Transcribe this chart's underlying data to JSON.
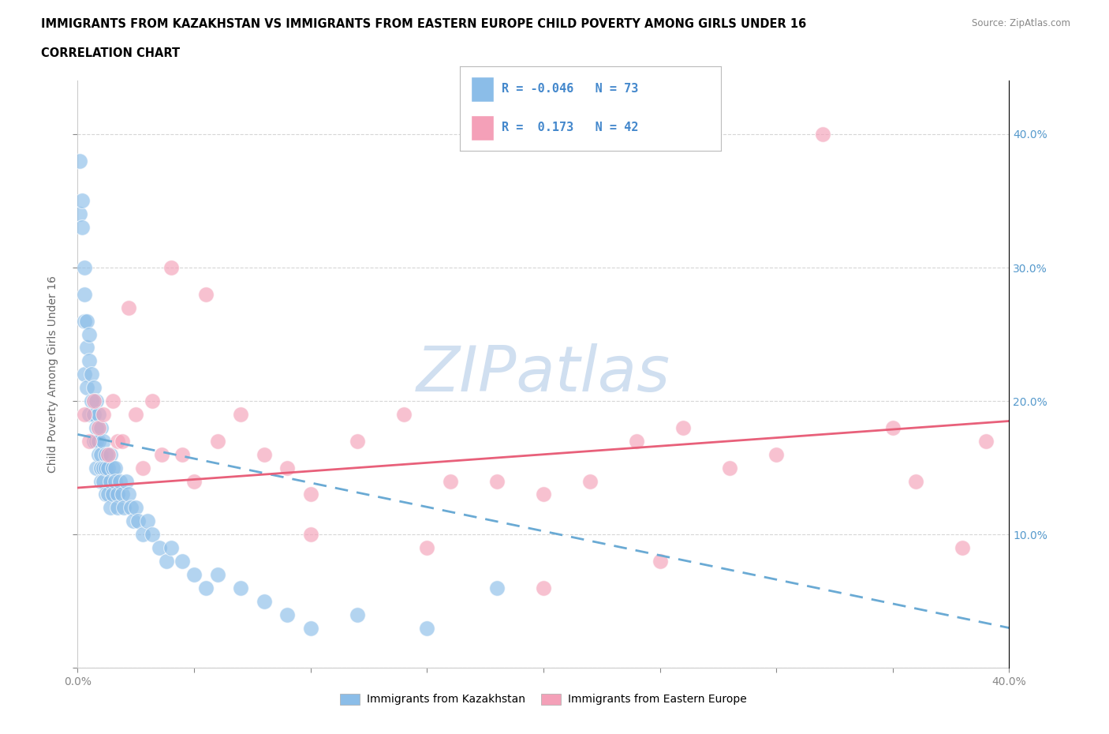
{
  "title_line1": "IMMIGRANTS FROM KAZAKHSTAN VS IMMIGRANTS FROM EASTERN EUROPE CHILD POVERTY AMONG GIRLS UNDER 16",
  "title_line2": "CORRELATION CHART",
  "source_text": "Source: ZipAtlas.com",
  "ylabel": "Child Poverty Among Girls Under 16",
  "xlim": [
    0.0,
    0.4
  ],
  "ylim": [
    0.0,
    0.44
  ],
  "xticks": [
    0.0,
    0.05,
    0.1,
    0.15,
    0.2,
    0.25,
    0.3,
    0.35,
    0.4
  ],
  "yticks": [
    0.0,
    0.1,
    0.2,
    0.3,
    0.4
  ],
  "kazakhstan_R": -0.046,
  "kazakhstan_N": 73,
  "eastern_europe_R": 0.173,
  "eastern_europe_N": 42,
  "kazakhstan_color": "#8BBDE8",
  "eastern_europe_color": "#F4A0B8",
  "trend_kazakhstan_color": "#6AAAD4",
  "trend_eastern_color": "#E8607A",
  "watermark": "ZIPatlas",
  "watermark_color": "#D0DFF0",
  "legend_label_kaz": "Immigrants from Kazakhstan",
  "legend_label_ee": "Immigrants from Eastern Europe",
  "kaz_x": [
    0.001,
    0.001,
    0.002,
    0.002,
    0.003,
    0.003,
    0.003,
    0.003,
    0.004,
    0.004,
    0.004,
    0.005,
    0.005,
    0.005,
    0.006,
    0.006,
    0.007,
    0.007,
    0.007,
    0.008,
    0.008,
    0.008,
    0.008,
    0.009,
    0.009,
    0.009,
    0.01,
    0.01,
    0.01,
    0.01,
    0.011,
    0.011,
    0.011,
    0.012,
    0.012,
    0.012,
    0.013,
    0.013,
    0.014,
    0.014,
    0.014,
    0.015,
    0.015,
    0.016,
    0.016,
    0.017,
    0.017,
    0.018,
    0.019,
    0.02,
    0.021,
    0.022,
    0.023,
    0.024,
    0.025,
    0.026,
    0.028,
    0.03,
    0.032,
    0.035,
    0.038,
    0.04,
    0.045,
    0.05,
    0.055,
    0.06,
    0.07,
    0.08,
    0.09,
    0.1,
    0.12,
    0.15,
    0.18
  ],
  "kaz_y": [
    0.34,
    0.38,
    0.33,
    0.35,
    0.26,
    0.28,
    0.3,
    0.22,
    0.24,
    0.26,
    0.21,
    0.25,
    0.23,
    0.19,
    0.2,
    0.22,
    0.21,
    0.19,
    0.17,
    0.2,
    0.18,
    0.17,
    0.15,
    0.19,
    0.17,
    0.16,
    0.18,
    0.16,
    0.15,
    0.14,
    0.17,
    0.15,
    0.14,
    0.16,
    0.15,
    0.13,
    0.15,
    0.13,
    0.16,
    0.14,
    0.12,
    0.15,
    0.13,
    0.15,
    0.14,
    0.13,
    0.12,
    0.14,
    0.13,
    0.12,
    0.14,
    0.13,
    0.12,
    0.11,
    0.12,
    0.11,
    0.1,
    0.11,
    0.1,
    0.09,
    0.08,
    0.09,
    0.08,
    0.07,
    0.06,
    0.07,
    0.06,
    0.05,
    0.04,
    0.03,
    0.04,
    0.03,
    0.06
  ],
  "ee_x": [
    0.003,
    0.005,
    0.007,
    0.009,
    0.011,
    0.013,
    0.015,
    0.017,
    0.019,
    0.022,
    0.025,
    0.028,
    0.032,
    0.036,
    0.04,
    0.045,
    0.05,
    0.055,
    0.06,
    0.07,
    0.08,
    0.09,
    0.1,
    0.12,
    0.14,
    0.16,
    0.18,
    0.2,
    0.22,
    0.24,
    0.26,
    0.28,
    0.3,
    0.32,
    0.35,
    0.36,
    0.38,
    0.39,
    0.25,
    0.2,
    0.15,
    0.1
  ],
  "ee_y": [
    0.19,
    0.17,
    0.2,
    0.18,
    0.19,
    0.16,
    0.2,
    0.17,
    0.17,
    0.27,
    0.19,
    0.15,
    0.2,
    0.16,
    0.3,
    0.16,
    0.14,
    0.28,
    0.17,
    0.19,
    0.16,
    0.15,
    0.13,
    0.17,
    0.19,
    0.14,
    0.14,
    0.06,
    0.14,
    0.17,
    0.18,
    0.15,
    0.16,
    0.4,
    0.18,
    0.14,
    0.09,
    0.17,
    0.08,
    0.13,
    0.09,
    0.1
  ],
  "kaz_trend_start_x": 0.0,
  "kaz_trend_start_y": 0.175,
  "kaz_trend_end_x": 0.4,
  "kaz_trend_end_y": 0.03,
  "ee_trend_start_x": 0.0,
  "ee_trend_start_y": 0.135,
  "ee_trend_end_x": 0.4,
  "ee_trend_end_y": 0.185
}
